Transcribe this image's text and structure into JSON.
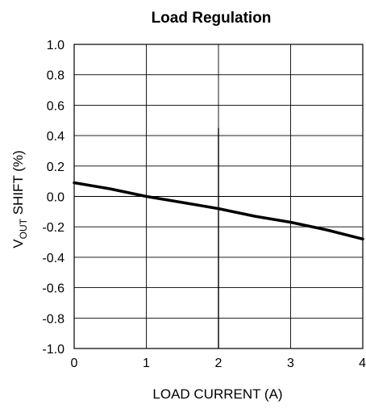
{
  "chart_data": {
    "type": "line",
    "title": "Load Regulation",
    "xlabel": "LOAD CURRENT (A)",
    "ylabel": {
      "main": "V",
      "subscript": "OUT",
      "rest": " SHIFT (%)"
    },
    "xlim": [
      0,
      4
    ],
    "ylim": [
      -1.0,
      1.0
    ],
    "x_ticks": [
      0,
      1,
      2,
      3,
      4
    ],
    "x_tick_labels": [
      "0",
      "1",
      "2",
      "3",
      "4"
    ],
    "y_ticks": [
      1.0,
      0.8,
      0.6,
      0.4,
      0.2,
      0.0,
      -0.2,
      -0.4,
      -0.6,
      -0.8,
      -1.0
    ],
    "y_tick_labels": [
      "1.0",
      "0.8",
      "0.6",
      "0.4",
      "0.2",
      "0.0",
      "-0.2",
      "-0.4",
      "-0.6",
      "-0.8",
      "-1.0"
    ],
    "grid": true,
    "series": [
      {
        "x": [
          0,
          0.5,
          1.0,
          1.5,
          2.0,
          2.5,
          3.0,
          3.5,
          4.0
        ],
        "y": [
          0.09,
          0.05,
          0.0,
          -0.04,
          -0.08,
          -0.13,
          -0.17,
          -0.22,
          -0.28
        ],
        "color": "#000000"
      }
    ],
    "annotations": [
      {
        "type": "vertical-line",
        "x": 2.0,
        "y_from": -1.0,
        "y_to": 0.45
      }
    ]
  }
}
